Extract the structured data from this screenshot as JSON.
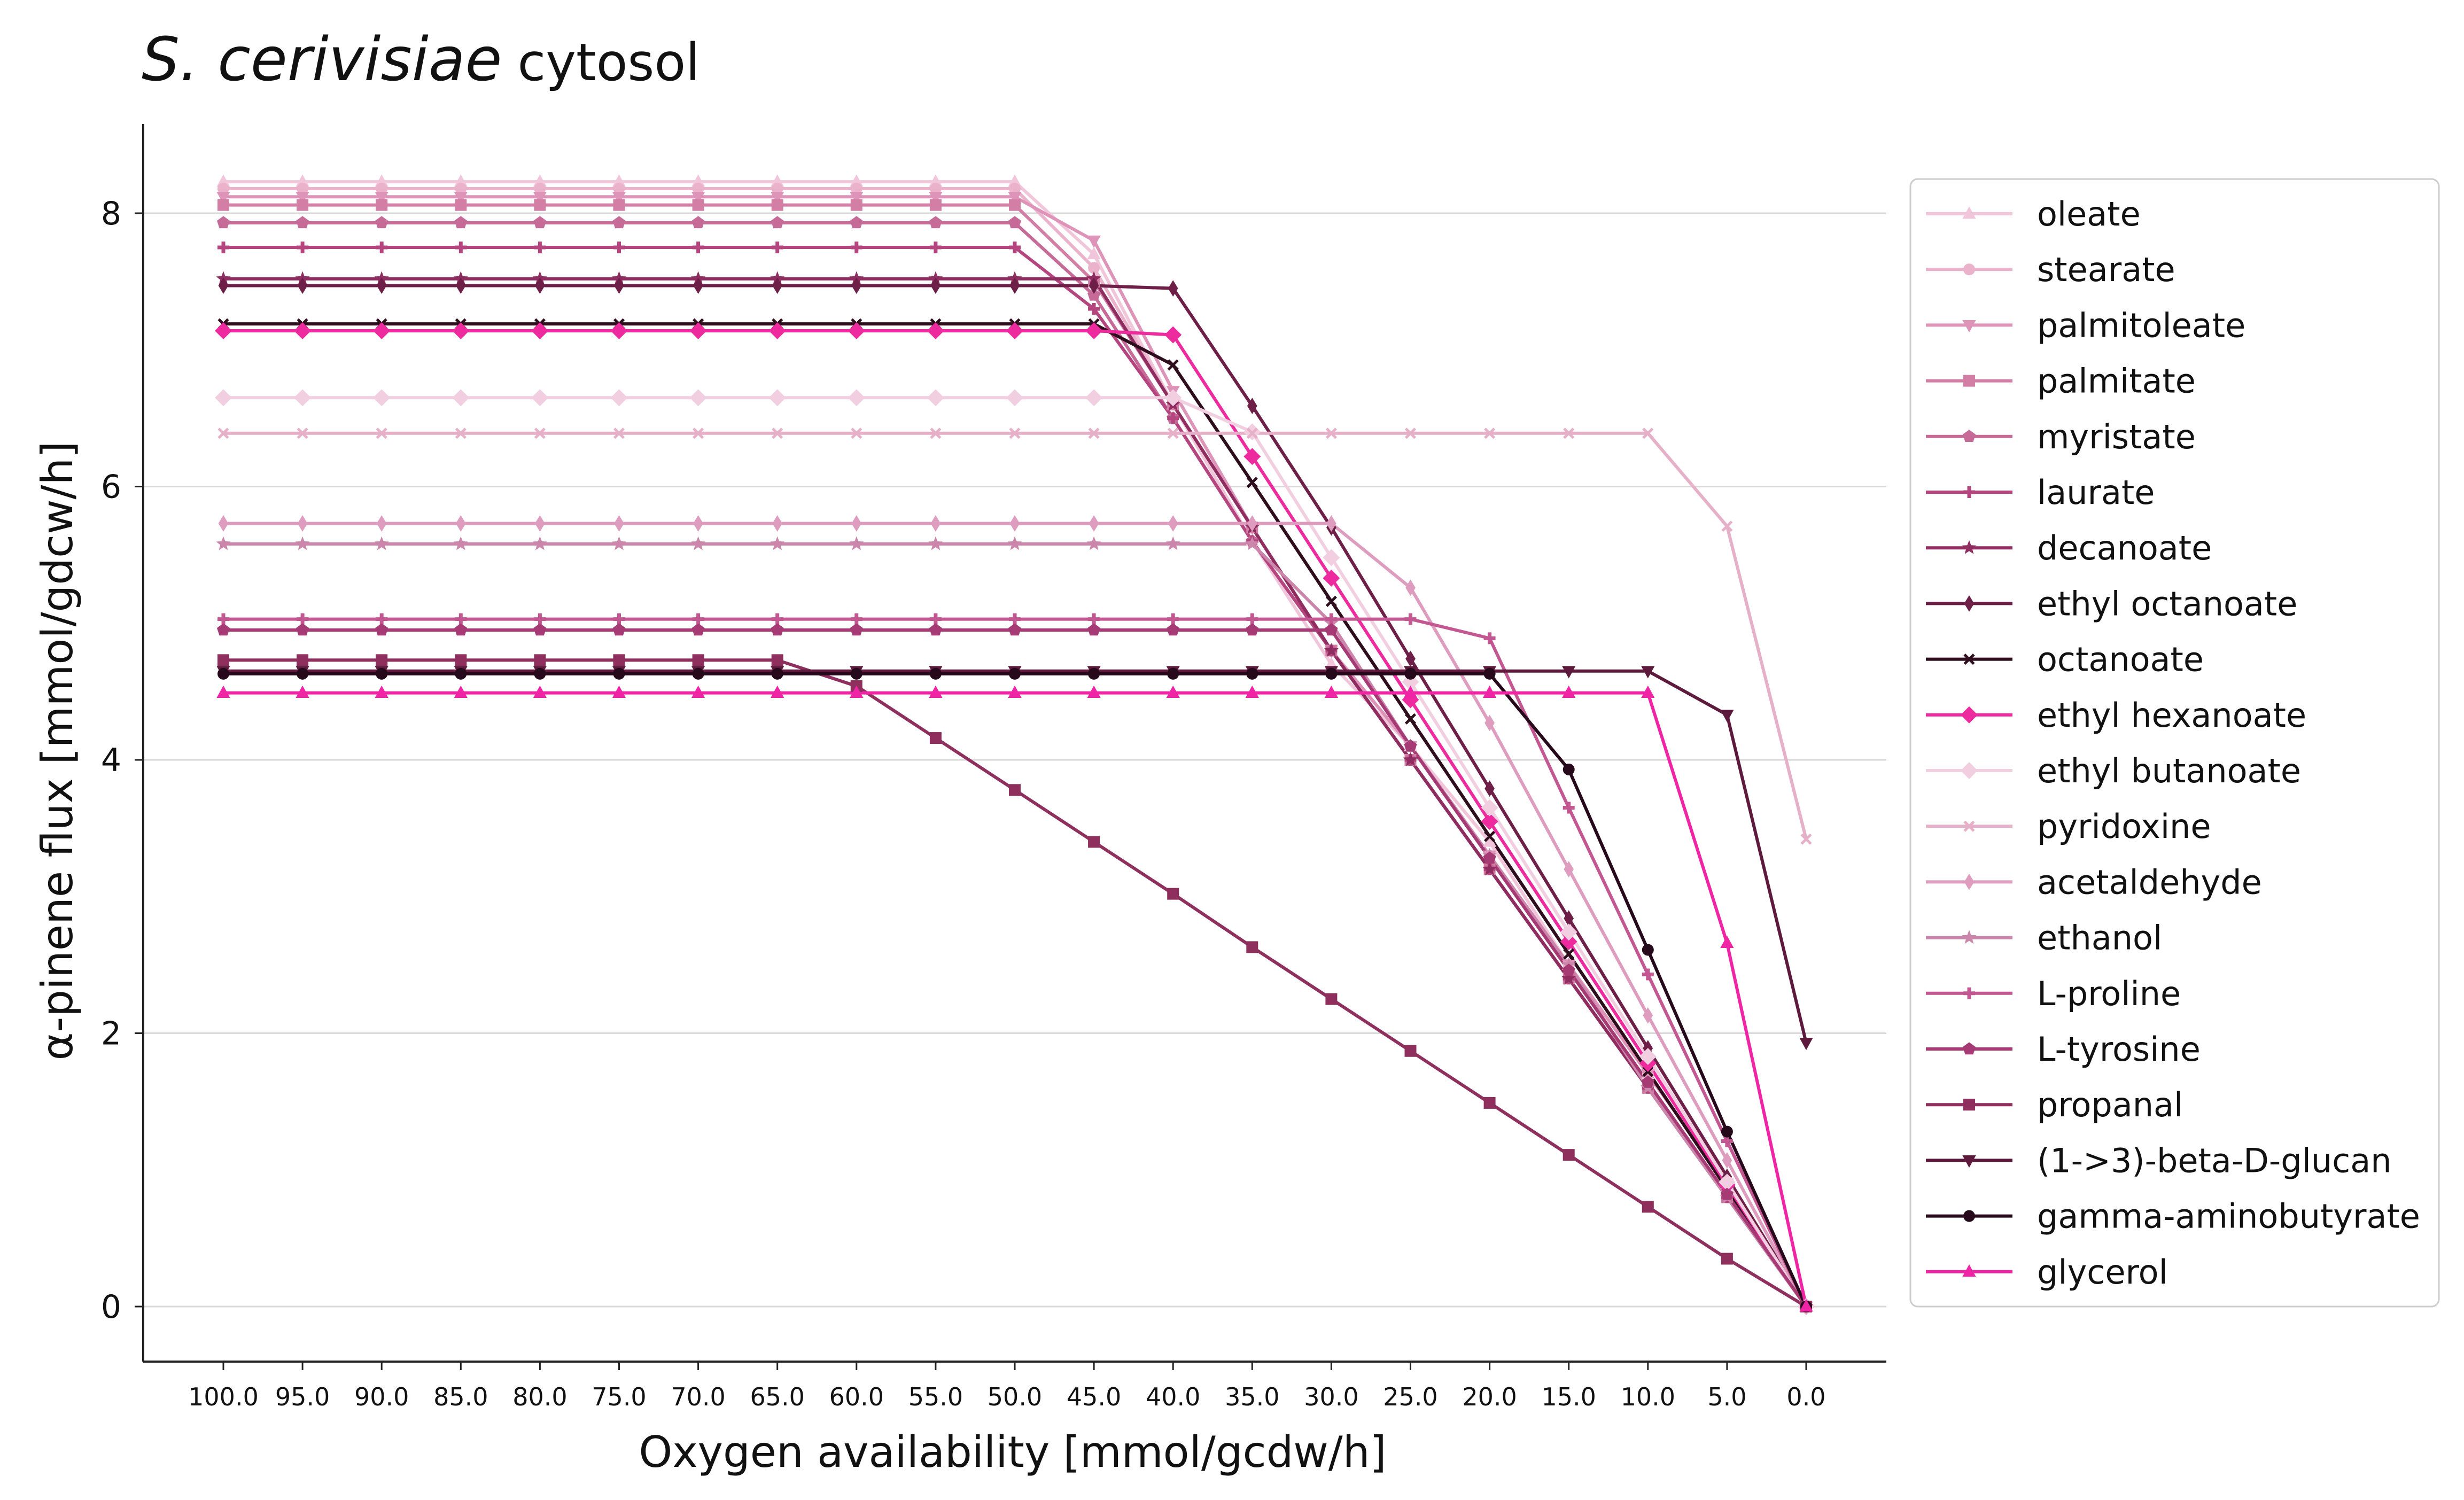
{
  "chart_data": {
    "type": "line",
    "title": "S. cerivisiae",
    "subtitle": "cytosol",
    "xlabel": "Oxygen availability [mmol/gcdw/h]",
    "ylabel": "α-pinene flux [mmol/gdcw/h]",
    "x": [
      100.0,
      95.0,
      90.0,
      85.0,
      80.0,
      75.0,
      70.0,
      65.0,
      60.0,
      55.0,
      50.0,
      45.0,
      40.0,
      35.0,
      30.0,
      25.0,
      20.0,
      15.0,
      10.0,
      5.0,
      0.0
    ],
    "x_tick_labels": [
      "100.0",
      "95.0",
      "90.0",
      "85.0",
      "80.0",
      "75.0",
      "70.0",
      "65.0",
      "60.0",
      "55.0",
      "50.0",
      "45.0",
      "40.0",
      "35.0",
      "30.0",
      "25.0",
      "20.0",
      "15.0",
      "10.0",
      "5.0",
      "0.0"
    ],
    "y_ticks": [
      0,
      2,
      4,
      6,
      8
    ],
    "ylim": [
      -0.4,
      8.65
    ],
    "grid": "horizontal",
    "legend_position": "right",
    "series": [
      {
        "name": "oleate",
        "color": "#f2c6da",
        "marker": "triangle-up",
        "values": [
          8.23,
          8.23,
          8.23,
          8.23,
          8.23,
          8.23,
          8.23,
          8.23,
          8.23,
          8.23,
          8.23,
          7.7,
          6.6,
          5.6,
          4.7,
          4.1,
          3.4,
          2.5,
          1.7,
          0.9,
          0
        ]
      },
      {
        "name": "stearate",
        "color": "#eab3cb",
        "marker": "circle",
        "values": [
          8.18,
          8.18,
          8.18,
          8.18,
          8.18,
          8.18,
          8.18,
          8.18,
          8.18,
          8.18,
          8.18,
          7.6,
          6.6,
          5.7,
          4.8,
          4.1,
          3.3,
          2.5,
          1.7,
          0.9,
          0
        ]
      },
      {
        "name": "palmitoleate",
        "color": "#dd94b8",
        "marker": "triangle-down",
        "values": [
          8.12,
          8.12,
          8.12,
          8.12,
          8.12,
          8.12,
          8.12,
          8.12,
          8.12,
          8.12,
          8.12,
          7.8,
          6.7,
          5.7,
          4.8,
          4.1,
          3.3,
          2.5,
          1.7,
          0.9,
          0
        ]
      },
      {
        "name": "palmitate",
        "color": "#d27ea5",
        "marker": "square",
        "values": [
          8.06,
          8.06,
          8.06,
          8.06,
          8.06,
          8.06,
          8.06,
          8.06,
          8.06,
          8.06,
          8.06,
          7.5,
          6.6,
          5.7,
          4.8,
          4.0,
          3.2,
          2.4,
          1.6,
          0.8,
          0
        ]
      },
      {
        "name": "myristate",
        "color": "#c66a98",
        "marker": "pentagon",
        "values": [
          7.93,
          7.93,
          7.93,
          7.93,
          7.93,
          7.93,
          7.93,
          7.93,
          7.93,
          7.93,
          7.93,
          7.4,
          6.5,
          5.6,
          4.8,
          4.0,
          3.2,
          2.4,
          1.6,
          0.8,
          0
        ]
      },
      {
        "name": "laurate",
        "color": "#b5457f",
        "marker": "plus",
        "values": [
          7.75,
          7.75,
          7.75,
          7.75,
          7.75,
          7.75,
          7.75,
          7.75,
          7.75,
          7.75,
          7.75,
          7.3,
          6.5,
          5.6,
          4.8,
          4.0,
          3.2,
          2.4,
          1.6,
          0.8,
          0
        ]
      },
      {
        "name": "decanoate",
        "color": "#8f2d60",
        "marker": "star",
        "values": [
          7.52,
          7.52,
          7.52,
          7.52,
          7.52,
          7.52,
          7.52,
          7.52,
          7.52,
          7.52,
          7.52,
          7.52,
          6.6,
          5.7,
          4.8,
          4.0,
          3.2,
          2.4,
          1.6,
          0.8,
          0
        ]
      },
      {
        "name": "ethyl octanoate",
        "color": "#6e1f48",
        "marker": "thin-diamond",
        "values": [
          7.47,
          7.47,
          7.47,
          7.47,
          7.47,
          7.47,
          7.47,
          7.47,
          7.47,
          7.47,
          7.47,
          7.47,
          7.45,
          6.59,
          5.7,
          4.74,
          3.79,
          2.84,
          1.89,
          0.95,
          0
        ]
      },
      {
        "name": "octanoate",
        "color": "#2e0d1c",
        "marker": "x",
        "values": [
          7.19,
          7.19,
          7.19,
          7.19,
          7.19,
          7.19,
          7.19,
          7.19,
          7.19,
          7.19,
          7.19,
          7.19,
          6.89,
          6.03,
          5.16,
          4.3,
          3.44,
          2.58,
          1.72,
          0.86,
          0
        ]
      },
      {
        "name": "ethyl hexanoate",
        "color": "#ee2a9f",
        "marker": "diamond",
        "values": [
          7.14,
          7.14,
          7.14,
          7.14,
          7.14,
          7.14,
          7.14,
          7.14,
          7.14,
          7.14,
          7.14,
          7.14,
          7.11,
          6.22,
          5.33,
          4.44,
          3.55,
          2.67,
          1.78,
          0.89,
          0
        ]
      },
      {
        "name": "ethyl butanoate",
        "color": "#f2cfe0",
        "marker": "diamond",
        "values": [
          6.65,
          6.65,
          6.65,
          6.65,
          6.65,
          6.65,
          6.65,
          6.65,
          6.65,
          6.65,
          6.65,
          6.65,
          6.65,
          6.4,
          5.48,
          4.57,
          3.65,
          2.74,
          1.83,
          0.91,
          0
        ]
      },
      {
        "name": "pyridoxine",
        "color": "#e6b0c8",
        "marker": "x",
        "values": [
          6.39,
          6.39,
          6.39,
          6.39,
          6.39,
          6.39,
          6.39,
          6.39,
          6.39,
          6.39,
          6.39,
          6.39,
          6.39,
          6.39,
          6.39,
          6.39,
          6.39,
          6.39,
          6.39,
          5.71,
          3.42
        ]
      },
      {
        "name": "acetaldehyde",
        "color": "#de9dbf",
        "marker": "thin-diamond",
        "values": [
          5.73,
          5.73,
          5.73,
          5.73,
          5.73,
          5.73,
          5.73,
          5.73,
          5.73,
          5.73,
          5.73,
          5.73,
          5.73,
          5.73,
          5.73,
          5.26,
          4.27,
          3.2,
          2.13,
          1.07,
          0
        ]
      },
      {
        "name": "ethanol",
        "color": "#cc86ab",
        "marker": "star",
        "values": [
          5.58,
          5.58,
          5.58,
          5.58,
          5.58,
          5.58,
          5.58,
          5.58,
          5.58,
          5.58,
          5.58,
          5.58,
          5.58,
          5.58,
          5.0,
          4.1,
          3.3,
          2.5,
          1.6,
          0.8,
          0
        ]
      },
      {
        "name": "L-proline",
        "color": "#c35791",
        "marker": "plus",
        "values": [
          5.03,
          5.03,
          5.03,
          5.03,
          5.03,
          5.03,
          5.03,
          5.03,
          5.03,
          5.03,
          5.03,
          5.03,
          5.03,
          5.03,
          5.03,
          5.03,
          4.89,
          3.65,
          2.43,
          1.21,
          0
        ]
      },
      {
        "name": "L-tyrosine",
        "color": "#a63a74",
        "marker": "pentagon",
        "values": [
          4.95,
          4.95,
          4.95,
          4.95,
          4.95,
          4.95,
          4.95,
          4.95,
          4.95,
          4.95,
          4.95,
          4.95,
          4.95,
          4.95,
          4.95,
          4.1,
          3.28,
          2.46,
          1.64,
          0.82,
          0
        ]
      },
      {
        "name": "propanal",
        "color": "#8e2f5e",
        "marker": "square",
        "values": [
          4.73,
          4.73,
          4.73,
          4.73,
          4.73,
          4.73,
          4.73,
          4.73,
          4.54,
          4.16,
          3.78,
          3.4,
          3.02,
          2.63,
          2.25,
          1.87,
          1.49,
          1.11,
          0.73,
          0.35,
          0
        ]
      },
      {
        "name": "(1->3)-beta-D-glucan",
        "color": "#5e1a3d",
        "marker": "triangle-down",
        "values": [
          4.65,
          4.65,
          4.65,
          4.65,
          4.65,
          4.65,
          4.65,
          4.65,
          4.65,
          4.65,
          4.65,
          4.65,
          4.65,
          4.65,
          4.65,
          4.65,
          4.65,
          4.65,
          4.65,
          4.33,
          1.93
        ]
      },
      {
        "name": "gamma-aminobutyrate",
        "color": "#26091a",
        "marker": "circle",
        "values": [
          4.63,
          4.63,
          4.63,
          4.63,
          4.63,
          4.63,
          4.63,
          4.63,
          4.63,
          4.63,
          4.63,
          4.63,
          4.63,
          4.63,
          4.63,
          4.63,
          4.63,
          3.93,
          2.61,
          1.28,
          0
        ]
      },
      {
        "name": "glycerol",
        "color": "#f025a5",
        "marker": "triangle-up",
        "values": [
          4.49,
          4.49,
          4.49,
          4.49,
          4.49,
          4.49,
          4.49,
          4.49,
          4.49,
          4.49,
          4.49,
          4.49,
          4.49,
          4.49,
          4.49,
          4.49,
          4.49,
          4.49,
          4.49,
          2.66,
          0
        ]
      }
    ]
  }
}
